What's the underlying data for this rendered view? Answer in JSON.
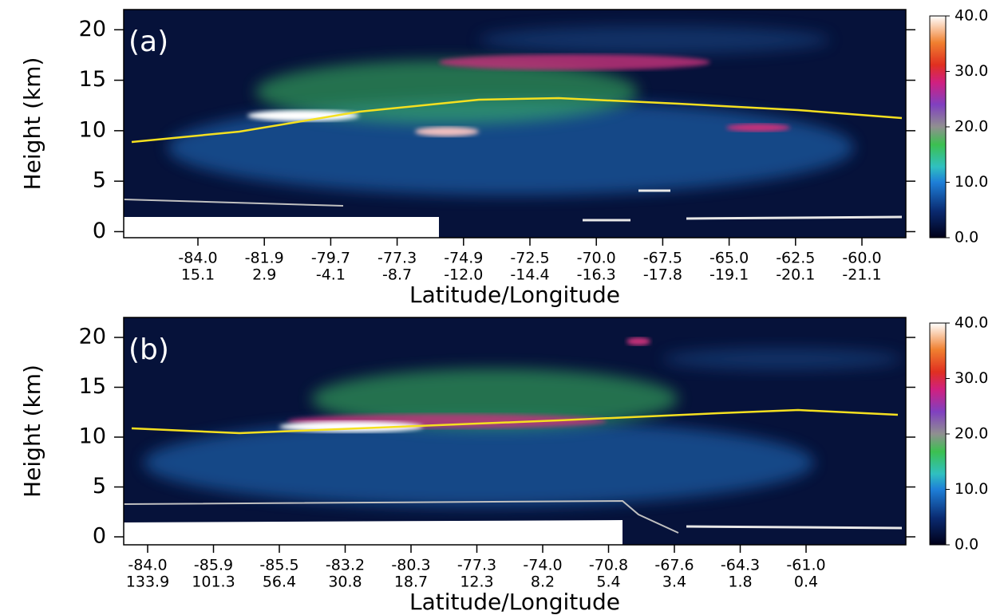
{
  "chart_data": [
    {
      "type": "curtain",
      "panel_label": "(a)",
      "ylabel": "Height (km)",
      "xlabel": "Latitude/Longitude",
      "ylim": [
        -0.6,
        22
      ],
      "yticks": [
        0,
        5,
        10,
        15,
        20
      ],
      "xticks_lat": [
        {
          "value": -84,
          "label": "-84.0"
        },
        -81.9,
        -79.7,
        -77.3,
        -74.9,
        -72.5,
        {
          "value": -70,
          "label": "-70.0"
        },
        -67.5,
        {
          "value": -65,
          "label": "-65.0"
        },
        -62.5,
        {
          "value": -60,
          "label": "-60.0"
        }
      ],
      "xticks_lon": [
        15.1,
        2.9,
        -4.1,
        -8.7,
        {
          "value": -12,
          "label": "-12.0"
        },
        -14.4,
        -16.3,
        -17.8,
        -19.1,
        -20.1,
        -21.1
      ],
      "clim": [
        0,
        40
      ],
      "cticks": [
        {
          "value": 0,
          "label": "0.0"
        },
        {
          "value": 10,
          "label": "10.0"
        },
        {
          "value": 20,
          "label": "20.0"
        },
        {
          "value": 30,
          "label": "30.0"
        },
        {
          "value": 40,
          "label": "40.0"
        }
      ]
    },
    {
      "type": "curtain",
      "panel_label": "(b)",
      "ylabel": "Height (km)",
      "xlabel": "Latitude/Longitude",
      "ylim": [
        -0.8,
        22
      ],
      "yticks": [
        0,
        5,
        10,
        15,
        20
      ],
      "xticks_lat": [
        {
          "value": -84,
          "label": "-84.0"
        },
        -85.9,
        -85.5,
        -83.2,
        -80.3,
        -77.3,
        {
          "value": -74,
          "label": "-74.0"
        },
        -70.8,
        -67.6,
        -64.3,
        {
          "value": -61,
          "label": "-61.0"
        }
      ],
      "xticks_lon": [
        133.9,
        101.3,
        56.4,
        30.8,
        18.7,
        12.3,
        8.2,
        5.4,
        3.4,
        1.8,
        0.4
      ],
      "clim": [
        0,
        40
      ],
      "cticks": [
        {
          "value": 0,
          "label": "0.0"
        },
        {
          "value": 10,
          "label": "10.0"
        },
        {
          "value": 20,
          "label": "20.0"
        },
        {
          "value": 30,
          "label": "30.0"
        },
        {
          "value": 40,
          "label": "40.0"
        }
      ]
    }
  ]
}
